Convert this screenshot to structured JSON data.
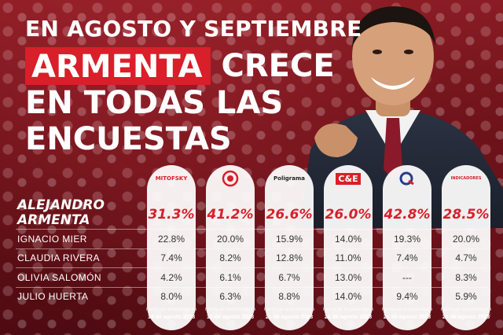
{
  "headline": {
    "line1": "EN AGOSTO Y SEPTIEMBRE",
    "highlight": "ARMENTA",
    "line2_rest": "CRECE",
    "line3": "EN TODAS LAS",
    "line4": "ENCUESTAS"
  },
  "pollsters": [
    {
      "logo": "MITOFSKY",
      "logo_color": "#d81f2a",
      "date_label": "Fecha de levantamiento",
      "date": "14 de agosto 2023"
    },
    {
      "logo": "",
      "logo_color": "#d81f2a",
      "date_label": "Fecha de levantamiento",
      "date": "15 de agosto 2023"
    },
    {
      "logo": "Poligrama",
      "logo_color": "#222222",
      "date_label": "Fecha de levantamiento",
      "date": "24 de agosto 2023"
    },
    {
      "logo": "C&E",
      "logo_color": "#d81f2a",
      "date_label": "Fecha de levantamiento",
      "date": "28 de agosto 2023"
    },
    {
      "logo": "",
      "logo_color": "#2a3a8a",
      "date_label": "Fecha de levantamiento",
      "date": "28 de agosto 2023"
    },
    {
      "logo": "INDICADORES",
      "logo_color": "#d81f2a",
      "date_label": "Fecha de levantamiento",
      "date": "28 de agosto 2023"
    }
  ],
  "candidates": [
    {
      "name_line1": "ALEJANDRO",
      "name_line2": "ARMENTA",
      "values": [
        "31.3%",
        "41.2%",
        "26.6%",
        "26.0%",
        "42.8%",
        "28.5%"
      ]
    },
    {
      "name": "IGNACIO MIER",
      "values": [
        "22.8%",
        "20.0%",
        "15.9%",
        "14.0%",
        "19.3%",
        "20.0%"
      ]
    },
    {
      "name": "CLAUDIA RIVERA",
      "values": [
        "7.4%",
        "8.2%",
        "12.8%",
        "11.0%",
        "7.4%",
        "4.7%"
      ]
    },
    {
      "name": "OLIVIA SALOMÓN",
      "values": [
        "4.2%",
        "6.1%",
        "6.7%",
        "13.0%",
        "---",
        "8.3%"
      ]
    },
    {
      "name": "JULIO HUERTA",
      "values": [
        "8.0%",
        "6.3%",
        "8.8%",
        "14.0%",
        "9.4%",
        "5.9%"
      ]
    }
  ],
  "colors": {
    "accent": "#d81f2a",
    "background": "#6b1219"
  }
}
